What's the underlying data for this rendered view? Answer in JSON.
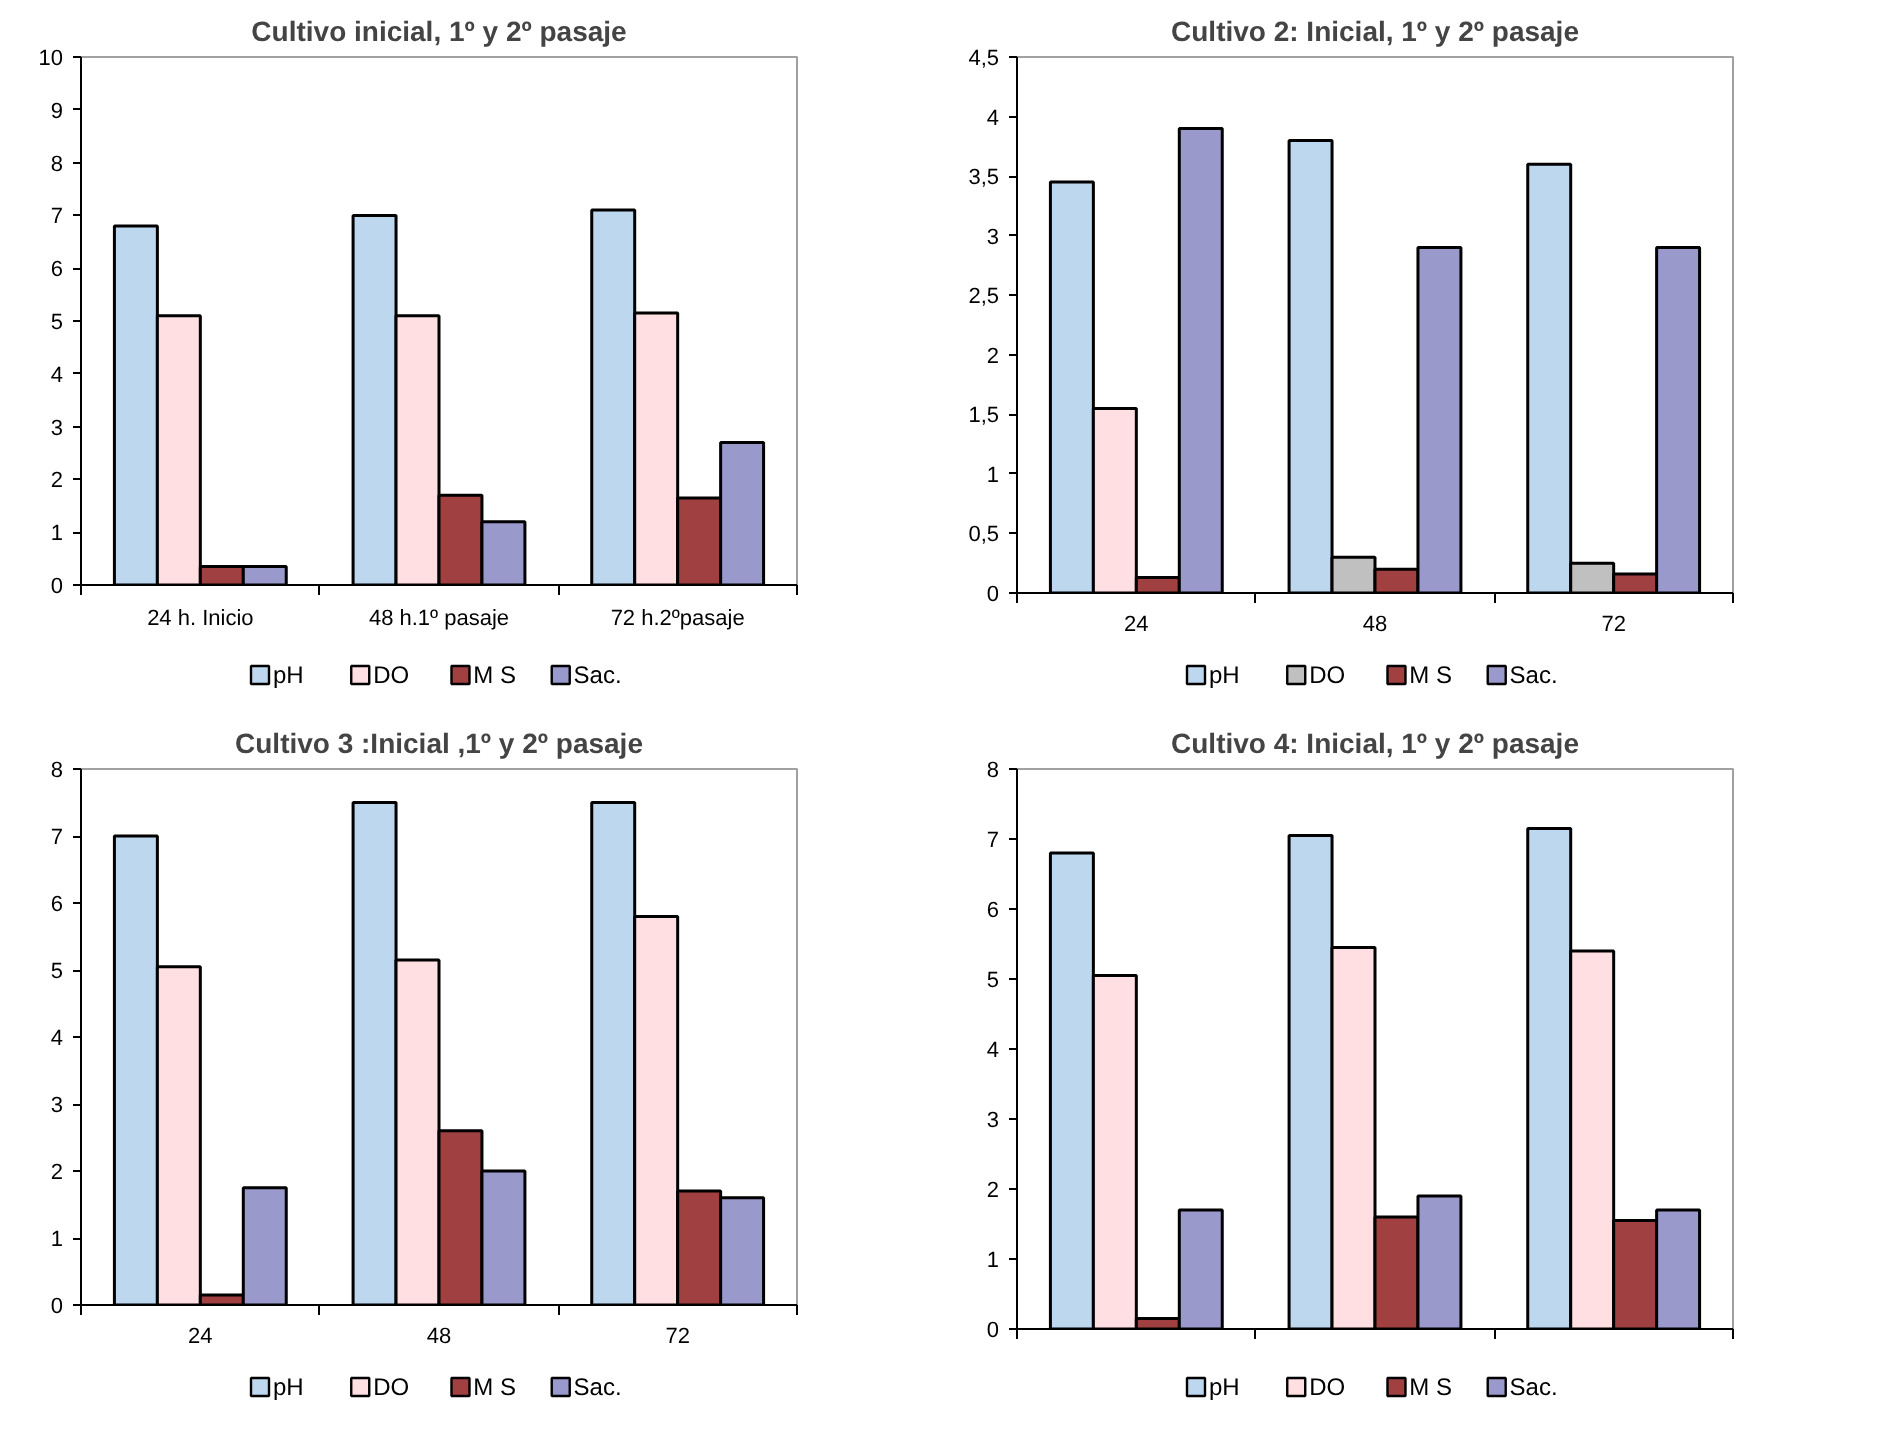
{
  "chart_data": [
    {
      "type": "bar",
      "title": "Cultivo inicial, 1º y 2º pasaje",
      "categories": [
        "24 h. Inicio",
        "48 h.1º pasaje",
        "72 h.2ºpasaje"
      ],
      "series": [
        {
          "name": "pH",
          "color": "#bdd7ee",
          "values": [
            6.8,
            7.0,
            7.1
          ]
        },
        {
          "name": "DO",
          "color": "#ffdfe2",
          "values": [
            5.1,
            5.1,
            5.15
          ]
        },
        {
          "name": "M S",
          "color": "#a04040",
          "values": [
            0.35,
            1.7,
            1.65
          ]
        },
        {
          "name": "Sac.",
          "color": "#9999cc",
          "values": [
            0.35,
            1.2,
            2.7
          ]
        }
      ],
      "ylim": [
        0,
        10
      ],
      "yticks": [
        0,
        1,
        2,
        3,
        4,
        5,
        6,
        7,
        8,
        9,
        10
      ],
      "grid": false,
      "legend": "bottom"
    },
    {
      "type": "bar",
      "title": "Cultivo 2: Inicial, 1º y 2º pasaje",
      "categories": [
        "24",
        "48",
        "72"
      ],
      "series": [
        {
          "name": "pH",
          "color": "#bdd7ee",
          "values": [
            3.45,
            3.8,
            3.6
          ]
        },
        {
          "name": "DO",
          "color": "#c0c0c0",
          "colors": [
            "#ffdfe2",
            "#c0c0c0",
            "#c0c0c0"
          ],
          "values": [
            1.55,
            0.3,
            0.25
          ]
        },
        {
          "name": "M S",
          "color": "#a04040",
          "values": [
            0.13,
            0.2,
            0.16
          ]
        },
        {
          "name": "Sac.",
          "color": "#9999cc",
          "values": [
            3.9,
            2.9,
            2.9
          ]
        }
      ],
      "ylim": [
        0,
        4.5
      ],
      "yticks": [
        0,
        {
          "value": 0.5,
          "label": "0,5"
        },
        1,
        {
          "value": 1.5,
          "label": "1,5"
        },
        2,
        {
          "value": 2.5,
          "label": "2,5"
        },
        3,
        {
          "value": 3.5,
          "label": "3,5"
        },
        4,
        {
          "value": 4.5,
          "label": "4,5"
        }
      ],
      "grid": false,
      "legend": "bottom"
    },
    {
      "type": "bar",
      "title": "Cultivo 3 :Inicial ,1º y 2º pasaje",
      "categories": [
        "24",
        "48",
        "72"
      ],
      "series": [
        {
          "name": "pH",
          "color": "#bdd7ee",
          "values": [
            7.0,
            7.5,
            7.5
          ]
        },
        {
          "name": "DO",
          "color": "#ffdfe2",
          "values": [
            5.05,
            5.15,
            5.8
          ]
        },
        {
          "name": "M S",
          "color": "#a04040",
          "values": [
            0.15,
            2.6,
            1.7
          ]
        },
        {
          "name": "Sac.",
          "color": "#9999cc",
          "values": [
            1.75,
            2.0,
            1.6
          ]
        }
      ],
      "ylim": [
        0,
        8
      ],
      "yticks": [
        0,
        1,
        2,
        3,
        4,
        5,
        6,
        7,
        8
      ],
      "grid": false,
      "legend": "bottom"
    },
    {
      "type": "bar",
      "title": "Cultivo 4: Inicial, 1º y 2º pasaje",
      "categories": [
        null,
        null,
        null
      ],
      "series": [
        {
          "name": "pH",
          "color": "#bdd7ee",
          "values": [
            6.8,
            7.05,
            7.15
          ]
        },
        {
          "name": "DO",
          "color": "#ffdfe2",
          "values": [
            5.05,
            5.45,
            5.4
          ]
        },
        {
          "name": "M S",
          "color": "#a04040",
          "values": [
            0.15,
            1.6,
            1.55
          ]
        },
        {
          "name": "Sac.",
          "color": "#9999cc",
          "values": [
            1.7,
            1.9,
            1.7
          ]
        }
      ],
      "ylim": [
        0,
        8
      ],
      "yticks": [
        0,
        1,
        2,
        3,
        4,
        5,
        6,
        7,
        8
      ],
      "grid": false,
      "legend": "bottom",
      "tick_labels": "y"
    }
  ]
}
